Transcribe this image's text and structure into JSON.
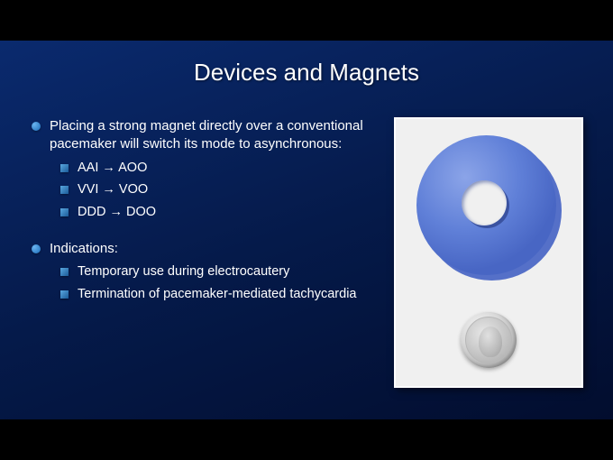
{
  "slide": {
    "title": "Devices and Magnets",
    "bullets": [
      {
        "type": "main",
        "text": "Placing a strong magnet directly over a conventional pacemaker will switch its mode to asynchronous:"
      },
      {
        "type": "sub",
        "text": "AAI → AOO"
      },
      {
        "type": "sub",
        "text": "VVI → VOO"
      },
      {
        "type": "sub",
        "text": "DDD → DOO"
      },
      {
        "type": "spacer"
      },
      {
        "type": "main",
        "text": "Indications:"
      },
      {
        "type": "sub",
        "text": "Temporary use during electrocautery"
      },
      {
        "type": "sub",
        "text": "Termination of pacemaker-mediated tachycardia"
      }
    ],
    "colors": {
      "background_top": "#0a2a6e",
      "background_bottom": "#020d2e",
      "letterbox": "#000000",
      "text": "#ffffff",
      "bullet_main": "#1a6bb8",
      "bullet_sub": "#1a5a98",
      "ring_light": "#8ba4e8",
      "ring_dark": "#4866c4",
      "coin_light": "#f5f5f5",
      "coin_dark": "#909090",
      "image_bg": "#f0f0f0"
    },
    "typography": {
      "title_fontsize": 26,
      "main_fontsize": 15,
      "sub_fontsize": 14.5,
      "font_family": "Arial"
    },
    "image": {
      "description": "ring-magnet-and-quarter-coin",
      "ring_color": "#6080d8",
      "coin_color": "#c0c0c0"
    }
  }
}
